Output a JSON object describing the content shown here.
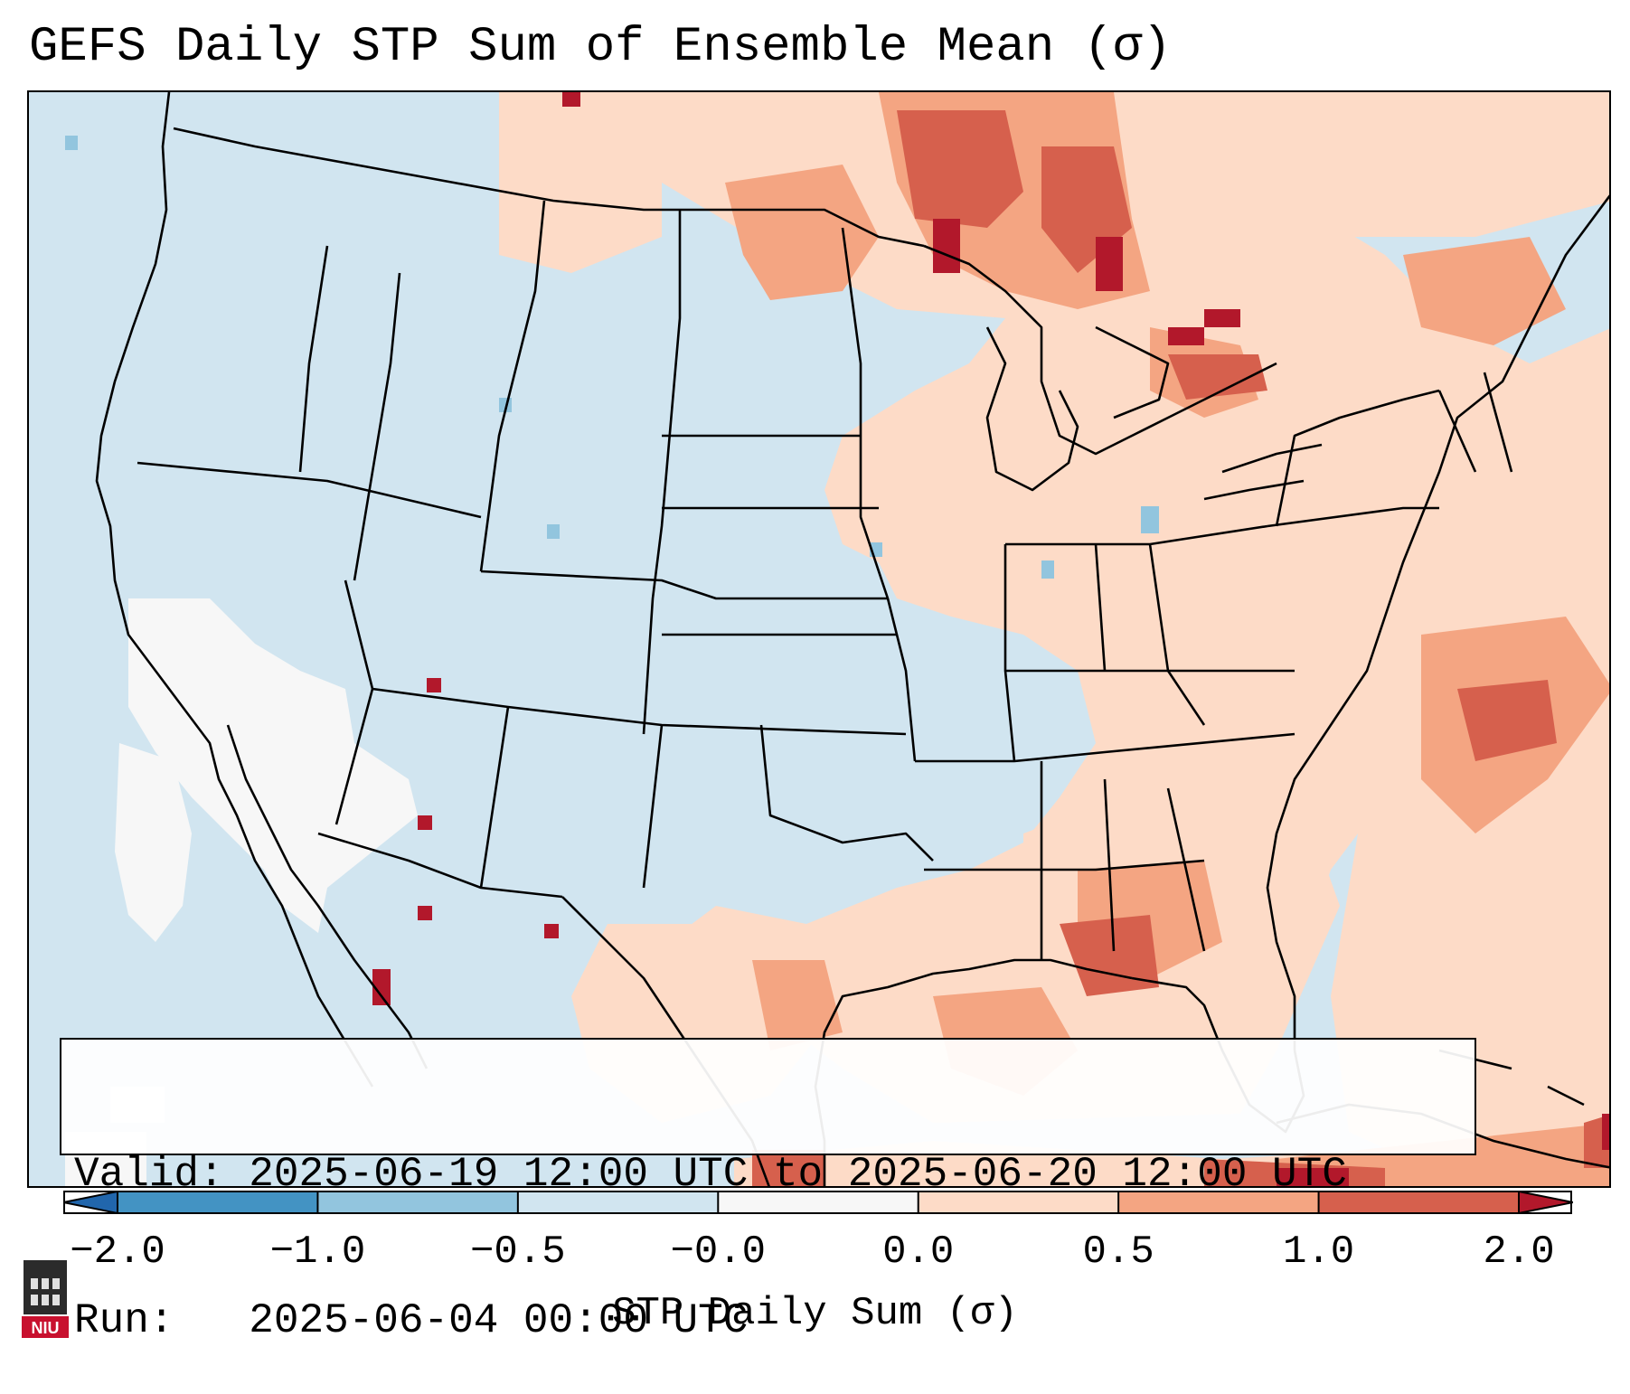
{
  "title": "GEFS Daily STP Sum of Ensemble Mean (σ)",
  "info": {
    "valid_label": "Valid:",
    "valid_value": "2025-06-19 12:00 UTC to 2025-06-20 12:00 UTC",
    "run_label": "Run:",
    "run_value": "2025-06-04 00:00 UTC"
  },
  "colorbar": {
    "label": "STP Daily Sum (σ)",
    "ticks": [
      "−2.0",
      "−1.0",
      "−0.5",
      "−0.0",
      "0.0",
      "0.5",
      "1.0",
      "2.0"
    ],
    "colors": [
      "#2166ac",
      "#4393c3",
      "#92c5de",
      "#d1e5f0",
      "#f7f7f7",
      "#fddbc7",
      "#f4a582",
      "#d6604d",
      "#b2182b"
    ]
  },
  "logo": {
    "text": "NIU",
    "icon": "niu-logo-icon",
    "color": "#c8102e"
  },
  "map": {
    "region": "Contiguous United States, southern Canada, northern Mexico",
    "background_color": "#d1e5f0",
    "field_notes": "Elevated STP anomalies over Upper Midwest/Great Lakes, Ontario, Quebec, Gulf Coast and western Atlantic; near-zero (white) over California/Arizona interior."
  }
}
